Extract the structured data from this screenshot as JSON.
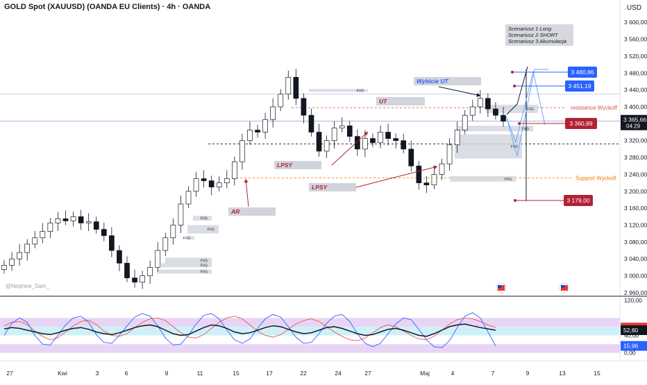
{
  "header": {
    "title": "GOLD Spot (XAUUSD) (OANDA EU Clients) · 4h · OANDA",
    "currency": "USD",
    "watermark": "@Nephew_Sam_"
  },
  "colors": {
    "bull": "#ffffff",
    "bear": "#131722",
    "red_accent": "#b22234",
    "blue_accent": "#2962ff",
    "orange_accent": "#f57c00",
    "box_gray": "#d1d4dc"
  },
  "chart_data": [
    {
      "type": "candlestick",
      "title": "GOLD Spot (XAUUSD) (OANDA EU Clients) · 4h · OANDA",
      "x_ticks": [
        "27",
        "Kwi",
        "3",
        "6",
        "9",
        "11",
        "15",
        "17",
        "22",
        "24",
        "27",
        "Maj",
        "4",
        "7",
        "9",
        "13",
        "15"
      ],
      "y_ticks": [
        "3 600,00",
        "3 560,00",
        "3 520,00",
        "3 480,00",
        "3 440,00",
        "3 400,00",
        "3 360,00",
        "3 320,00",
        "3 280,00",
        "3 240,00",
        "3 200,00",
        "3 160,00",
        "3 120,00",
        "3 080,00",
        "3 040,00",
        "3 000,00",
        "2 960,00"
      ],
      "y_values": [
        3600,
        3560,
        3520,
        3480,
        3440,
        3400,
        3360,
        3320,
        3280,
        3240,
        3200,
        3160,
        3120,
        3080,
        3040,
        3000,
        2960
      ],
      "ylim": [
        2955,
        3620
      ],
      "series_close_path": [
        [
          0,
          3025
        ],
        [
          1,
          3040
        ],
        [
          2,
          3055
        ],
        [
          3,
          3075
        ],
        [
          4,
          3090
        ],
        [
          5,
          3105
        ],
        [
          6,
          3125
        ],
        [
          7,
          3135
        ],
        [
          8,
          3130
        ],
        [
          9,
          3140
        ],
        [
          10,
          3125
        ],
        [
          11,
          3128
        ],
        [
          12,
          3110
        ],
        [
          13,
          3095
        ],
        [
          14,
          3060
        ],
        [
          15,
          3030
        ],
        [
          16,
          2995
        ],
        [
          17,
          2985
        ],
        [
          18,
          3000
        ],
        [
          19,
          3020
        ],
        [
          20,
          3060
        ],
        [
          21,
          3090
        ],
        [
          22,
          3120
        ],
        [
          23,
          3170
        ],
        [
          24,
          3200
        ],
        [
          25,
          3230
        ],
        [
          26,
          3225
        ],
        [
          27,
          3210
        ],
        [
          28,
          3220
        ],
        [
          29,
          3230
        ],
        [
          30,
          3270
        ],
        [
          31,
          3320
        ],
        [
          32,
          3345
        ],
        [
          33,
          3340
        ],
        [
          34,
          3370
        ],
        [
          35,
          3400
        ],
        [
          36,
          3430
        ],
        [
          37,
          3470
        ],
        [
          38,
          3420
        ],
        [
          39,
          3380
        ],
        [
          40,
          3340
        ],
        [
          41,
          3295
        ],
        [
          42,
          3320
        ],
        [
          43,
          3350
        ],
        [
          44,
          3355
        ],
        [
          45,
          3330
        ],
        [
          46,
          3300
        ],
        [
          47,
          3325
        ],
        [
          48,
          3315
        ],
        [
          49,
          3340
        ],
        [
          50,
          3325
        ],
        [
          51,
          3320
        ],
        [
          52,
          3300
        ],
        [
          53,
          3260
        ],
        [
          54,
          3220
        ],
        [
          55,
          3215
        ],
        [
          56,
          3240
        ],
        [
          57,
          3265
        ],
        [
          58,
          3310
        ],
        [
          59,
          3345
        ],
        [
          60,
          3380
        ],
        [
          61,
          3400
        ],
        [
          62,
          3420
        ],
        [
          63,
          3395
        ],
        [
          64,
          3380
        ],
        [
          65,
          3366
        ]
      ],
      "annotations": {
        "price_labels": [
          "3 480,86",
          "3 451,19",
          "3 360,89",
          "3 179,00"
        ],
        "current_price": "3 365,66",
        "countdown": "04:29",
        "levels": [
          "resistance Wyckoff",
          "Support Wyckoff"
        ],
        "tags": [
          "Wybicie UT",
          "UT",
          "LPSY",
          "LPSY",
          "AR"
        ],
        "fvg_label": "FVG",
        "scenarios": [
          "Scenariusz 1 Long",
          "Scenariusz 2 SHORT",
          "Scenariusz 3 Akumulacja"
        ]
      }
    },
    {
      "type": "line",
      "y_ticks": [
        "120,00",
        "40,00",
        "0,00"
      ],
      "ylim": [
        -10,
        125
      ],
      "badges": [
        "58,06",
        "52,80",
        "15,96"
      ],
      "series": [
        {
          "color": "#ef5350",
          "values": [
            62,
            70,
            72,
            65,
            50,
            38,
            30,
            35,
            48,
            62,
            72,
            75,
            65,
            50,
            40,
            38,
            44,
            58,
            70,
            78,
            80,
            74,
            60,
            46,
            36,
            34,
            42,
            56,
            70,
            80,
            84,
            78,
            64,
            50,
            40,
            36,
            42,
            54,
            66,
            74,
            78,
            72,
            60,
            48,
            38,
            30,
            28,
            34,
            46,
            58,
            64,
            60,
            50,
            40,
            32,
            30,
            38,
            52,
            66,
            76,
            80,
            78,
            72,
            64,
            58
          ]
        },
        {
          "color": "#2962ff",
          "values": [
            40,
            68,
            80,
            70,
            40,
            20,
            18,
            40,
            64,
            80,
            84,
            70,
            42,
            24,
            22,
            40,
            62,
            82,
            90,
            84,
            62,
            34,
            18,
            20,
            40,
            66,
            86,
            90,
            78,
            52,
            30,
            22,
            32,
            56,
            78,
            88,
            82,
            60,
            36,
            22,
            24,
            44,
            68,
            84,
            88,
            72,
            44,
            22,
            14,
            22,
            44,
            66,
            80,
            76,
            54,
            30,
            14,
            12,
            28,
            58,
            84,
            92,
            80,
            48,
            16
          ]
        },
        {
          "color": "#131722",
          "values": [
            55,
            58,
            56,
            52,
            48,
            44,
            42,
            46,
            52,
            56,
            58,
            54,
            48,
            44,
            42,
            46,
            52,
            58,
            62,
            64,
            60,
            52,
            44,
            40,
            42,
            50,
            58,
            64,
            62,
            56,
            48,
            44,
            46,
            52,
            58,
            62,
            60,
            54,
            48,
            44,
            46,
            52,
            58,
            60,
            56,
            50,
            44,
            40,
            42,
            48,
            54,
            56,
            52,
            46,
            40,
            38,
            44,
            52,
            60,
            64,
            66,
            62,
            58,
            55,
            52
          ]
        }
      ]
    }
  ]
}
